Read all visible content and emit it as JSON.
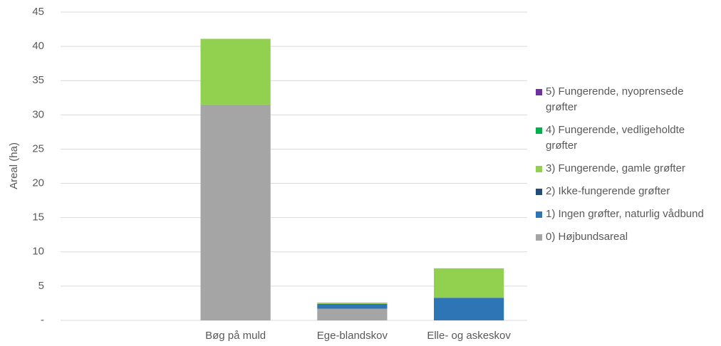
{
  "chart_data": {
    "type": "stacked-bar",
    "y_label": "Areal (ha)",
    "categories": [
      null,
      "Bøg på muld",
      "Ege-blandskov",
      "Elle- og askeskov"
    ],
    "series": [
      {
        "name": "0) Højbundsareal",
        "color": "#a5a5a5",
        "values": [
          null,
          31.5,
          1.7,
          0
        ]
      },
      {
        "name": "1) Ingen grøfter, naturlig vådbund",
        "color": "#2e75b6",
        "values": [
          null,
          0,
          0.7,
          3.3
        ]
      },
      {
        "name": "2) Ikke-fungerende grøfter",
        "color": "#1f4e79",
        "values": [
          null,
          0,
          0,
          0
        ]
      },
      {
        "name": "3) Fungerende, gamle grøfter",
        "color": "#92d050",
        "values": [
          null,
          9.6,
          0.2,
          4.3
        ]
      },
      {
        "name": "4) Fungerende, vedligeholdte grøfter",
        "color": "#00b050",
        "values": [
          null,
          0,
          0,
          0
        ]
      },
      {
        "name": "5) Fungerende, nyoprensede grøfter",
        "color": "#7030a0",
        "values": [
          null,
          0,
          0,
          0
        ]
      }
    ],
    "ylim": [
      0,
      45
    ],
    "yticks": [
      {
        "value": 0,
        "label": "-"
      },
      5,
      10,
      15,
      20,
      25,
      30,
      35,
      40,
      45
    ],
    "grid": true,
    "legend": "right"
  }
}
